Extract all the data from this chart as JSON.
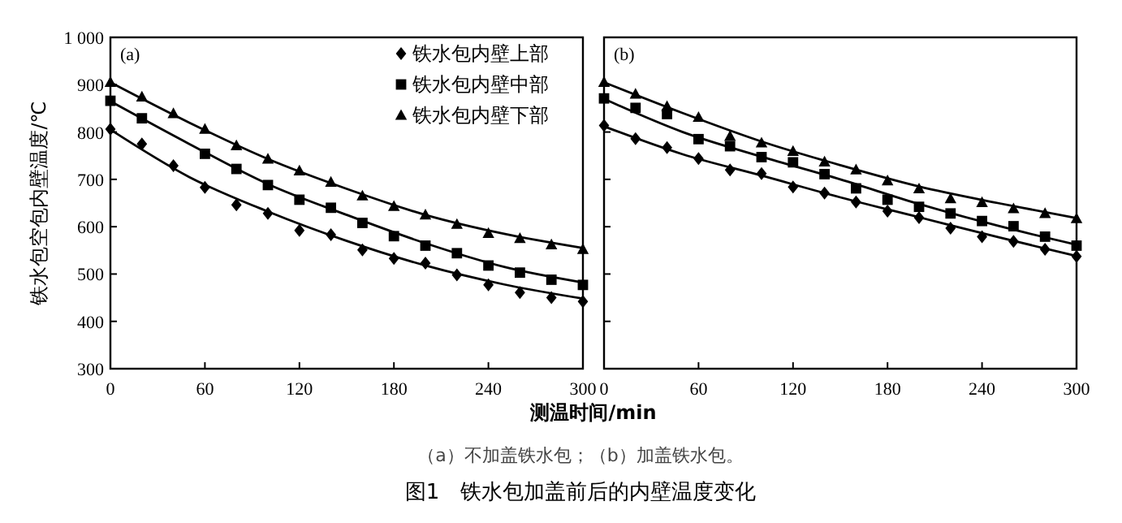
{
  "chart_data": [
    {
      "type": "scatter",
      "title": "(a)",
      "xlabel": "测温时间/min",
      "ylabel": "铁水包空包内壁温度/℃",
      "xlim": [
        0,
        300
      ],
      "xticks": [
        0,
        60,
        120,
        180,
        240,
        300
      ],
      "ylim": [
        300,
        1000
      ],
      "yticks": [
        300,
        400,
        500,
        600,
        700,
        800,
        900,
        {
          "value": 1000,
          "label": "1 000"
        }
      ],
      "legend": "top right",
      "annotations": [
        "（a）不加盖铁水包；（b）加盖铁水包。",
        "图1　铁水包加盖前后的内壁温度变化"
      ],
      "x": [
        0,
        20,
        40,
        60,
        80,
        100,
        120,
        140,
        160,
        180,
        200,
        220,
        240,
        260,
        280,
        300
      ],
      "series": [
        {
          "name": "铁水包内壁上部",
          "color": "#000000",
          "marker": "diamond",
          "values": [
            806,
            775,
            729,
            683,
            646,
            628,
            592,
            583,
            551,
            533,
            523,
            498,
            477,
            461,
            450,
            442
          ]
        },
        {
          "name": "铁水包内壁中部",
          "color": "#000000",
          "marker": "square",
          "values": [
            866,
            829,
            null,
            754,
            722,
            688,
            657,
            640,
            608,
            580,
            560,
            544,
            518,
            503,
            488,
            477
          ]
        },
        {
          "name": "铁水包内壁下部",
          "color": "#000000",
          "marker": "triangle",
          "values": [
            905,
            874,
            839,
            806,
            771,
            743,
            718,
            694,
            665,
            643,
            625,
            605,
            586,
            575,
            562,
            552
          ]
        },
        {
          "type": "line",
          "color": "#000000",
          "line_style": "solid",
          "x": [
            0,
            50,
            100,
            150,
            200,
            250,
            300
          ],
          "values": [
            805,
            705,
            632,
            570,
            518,
            478,
            448
          ]
        },
        {
          "type": "line",
          "color": "#000000",
          "line_style": "solid",
          "x": [
            0,
            50,
            100,
            150,
            200,
            250,
            300
          ],
          "values": [
            865,
            775,
            690,
            625,
            565,
            515,
            482
          ]
        },
        {
          "type": "line",
          "color": "#000000",
          "line_style": "solid",
          "x": [
            0,
            50,
            100,
            150,
            200,
            250,
            300
          ],
          "values": [
            905,
            820,
            743,
            680,
            625,
            585,
            555
          ]
        }
      ]
    },
    {
      "type": "scatter",
      "title": "(b)",
      "xlim": [
        0,
        300
      ],
      "xticks": [
        0,
        60,
        120,
        180,
        240,
        300
      ],
      "ylim": [
        300,
        1000
      ],
      "yticks": [
        300,
        400,
        500,
        600,
        700,
        800,
        900,
        1000
      ],
      "tick_labels": "x",
      "x": [
        0,
        20,
        40,
        60,
        80,
        100,
        120,
        140,
        160,
        180,
        200,
        220,
        240,
        260,
        280,
        300
      ],
      "series": [
        {
          "color": "#000000",
          "marker": "diamond",
          "values": [
            814,
            786,
            767,
            744,
            720,
            712,
            684,
            671,
            652,
            633,
            619,
            597,
            579,
            569,
            552,
            537
          ]
        },
        {
          "color": "#000000",
          "marker": "square",
          "values": [
            871,
            851,
            838,
            785,
            770,
            747,
            736,
            711,
            681,
            657,
            642,
            628,
            612,
            601,
            579,
            560
          ]
        },
        {
          "color": "#000000",
          "marker": "triangle",
          "values": [
            905,
            880,
            854,
            831,
            791,
            777,
            759,
            737,
            720,
            697,
            680,
            659,
            651,
            638,
            628,
            617
          ]
        },
        {
          "type": "line",
          "color": "#000000",
          "line_style": "solid",
          "x": [
            0,
            50,
            100,
            150,
            200,
            250,
            300
          ],
          "values": [
            812,
            753,
            708,
            662,
            620,
            578,
            538
          ]
        },
        {
          "type": "line",
          "color": "#000000",
          "line_style": "solid",
          "x": [
            0,
            50,
            100,
            150,
            200,
            250,
            300
          ],
          "values": [
            870,
            800,
            748,
            700,
            648,
            602,
            562
          ]
        },
        {
          "type": "line",
          "color": "#000000",
          "line_style": "solid",
          "x": [
            0,
            50,
            100,
            150,
            200,
            250,
            300
          ],
          "values": [
            905,
            840,
            780,
            730,
            685,
            650,
            618
          ]
        }
      ]
    }
  ]
}
